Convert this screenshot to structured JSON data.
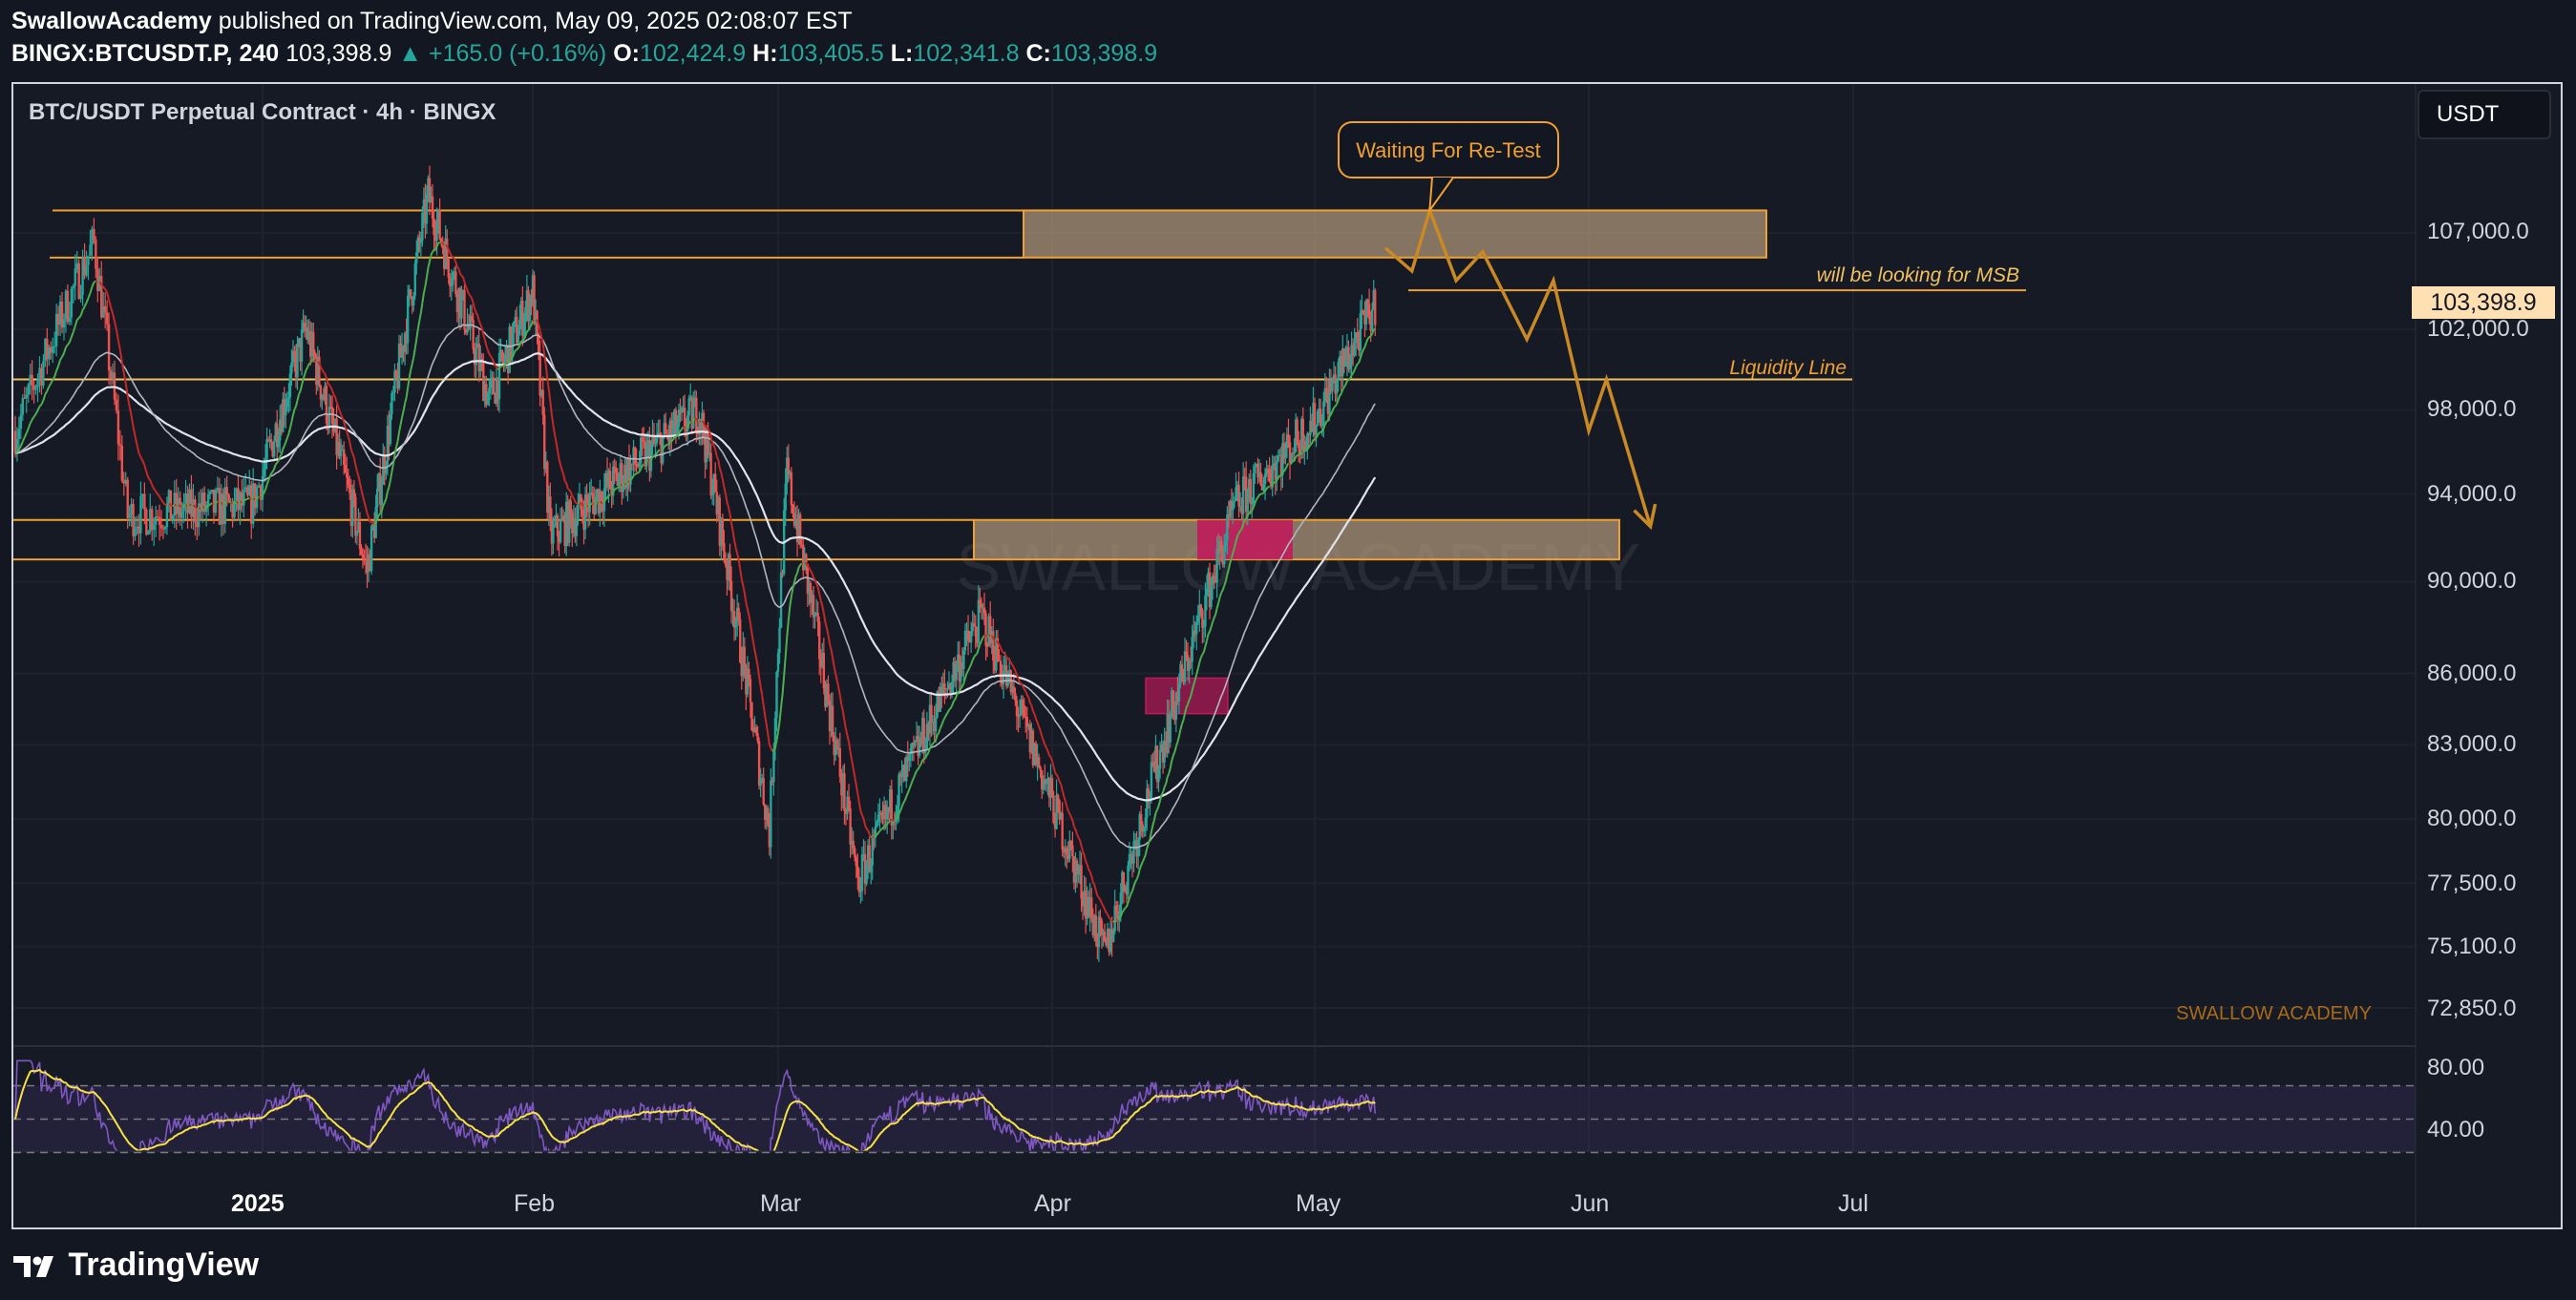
{
  "header": {
    "author": "SwallowAcademy",
    "published": " published on TradingView.com, May 09, 2025 02:08:07 EST",
    "symbol": "BINGX:BTCUSDT.P, 240",
    "last": "103,398.9",
    "change": "▲ +165.0 (+0.16%)",
    "o_label": "O:",
    "o": "102,424.9",
    "h_label": "H:",
    "h": "103,405.5",
    "l_label": "L:",
    "l": "102,341.8",
    "c_label": "C:",
    "c": "103,398.9"
  },
  "pane_title": "BTC/USDT Perpetual Contract · 4h · BINGX",
  "currency_button": "USDT",
  "price_tag": "103,398.9",
  "annotations": {
    "callout": "Waiting For Re-Test",
    "msb": "will be looking for MSB",
    "liquidity": "Liquidity Line",
    "watermark": "SWALLOW ACADEMY",
    "brand": "SWALLOW ACADEMY"
  },
  "footer": {
    "brand": "TradingView"
  },
  "colors": {
    "background": "#131722",
    "up": "#26a69a",
    "down": "#ef5350",
    "annotation": "#f0a030",
    "zone_fill": "#b39b7a",
    "ob_fill": "#c2185b",
    "rsi": "#7e57c2",
    "rsi_ma": "#f7e244"
  },
  "chart_data": {
    "type": "candlestick",
    "title": "BTC/USDT Perpetual Contract · 4h · BINGX",
    "y_ticks": [
      "107,000.0",
      "102,000.0",
      "98,000.0",
      "94,000.0",
      "90,000.0",
      "86,000.0",
      "83,000.0",
      "80,000.0",
      "77,500.0",
      "75,100.0",
      "72,850.0"
    ],
    "x_ticks": [
      "2025",
      "Feb",
      "Mar",
      "Apr",
      "May",
      "Jun",
      "Jul"
    ],
    "rsi_ticks": [
      "80.00",
      "40.00"
    ],
    "price_path": [
      {
        "date": "2024-12-10",
        "price": 97000
      },
      {
        "date": "2024-12-17",
        "price": 106500
      },
      {
        "date": "2024-12-20",
        "price": 93000
      },
      {
        "date": "2024-12-31",
        "price": 93500
      },
      {
        "date": "2025-01-06",
        "price": 102000
      },
      {
        "date": "2025-01-13",
        "price": 90500
      },
      {
        "date": "2025-01-20",
        "price": 109000
      },
      {
        "date": "2025-01-27",
        "price": 98500
      },
      {
        "date": "2025-02-01",
        "price": 104000
      },
      {
        "date": "2025-02-03",
        "price": 92000
      },
      {
        "date": "2025-02-20",
        "price": 98000
      },
      {
        "date": "2025-02-28",
        "price": 79500
      },
      {
        "date": "2025-03-02",
        "price": 95000
      },
      {
        "date": "2025-03-10",
        "price": 77500
      },
      {
        "date": "2025-03-24",
        "price": 88500
      },
      {
        "date": "2025-04-07",
        "price": 74800
      },
      {
        "date": "2025-04-22",
        "price": 93500
      },
      {
        "date": "2025-05-01",
        "price": 97500
      },
      {
        "date": "2025-05-08",
        "price": 103400
      }
    ],
    "zones": [
      {
        "name": "Resistance zone",
        "low": 105700,
        "high": 108200
      },
      {
        "name": "Support zone",
        "low": 91000,
        "high": 92800
      },
      {
        "name": "Order block",
        "low": 84300,
        "high": 85800
      }
    ],
    "liquidity_line": 99500,
    "msb_level": 104000,
    "projection": [
      {
        "date": "2025-05-09",
        "price": 106200
      },
      {
        "date": "2025-05-12",
        "price": 105000
      },
      {
        "date": "2025-05-14",
        "price": 108200
      },
      {
        "date": "2025-05-17",
        "price": 104500
      },
      {
        "date": "2025-05-20",
        "price": 106000
      },
      {
        "date": "2025-05-25",
        "price": 101500
      },
      {
        "date": "2025-05-28",
        "price": 104500
      },
      {
        "date": "2025-06-01",
        "price": 97000
      },
      {
        "date": "2025-06-03",
        "price": 99500
      },
      {
        "date": "2025-06-08",
        "price": 92500
      }
    ]
  }
}
